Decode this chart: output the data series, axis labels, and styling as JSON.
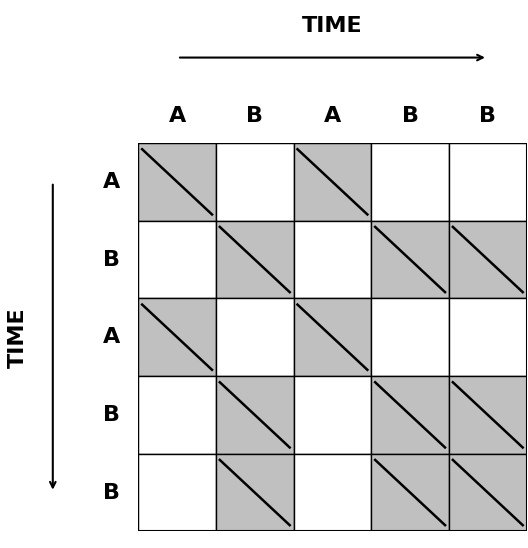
{
  "labels": [
    "A",
    "B",
    "A",
    "B",
    "B"
  ],
  "n": 5,
  "gray_color": "#c0c0c0",
  "white_color": "#ffffff",
  "line_color": "#000000",
  "top_label": "TIME",
  "left_label": "TIME",
  "label_fontsize": 16,
  "axis_label_fontsize": 16,
  "grid_linewidth": 1.0,
  "diagonal_linewidth": 1.8
}
